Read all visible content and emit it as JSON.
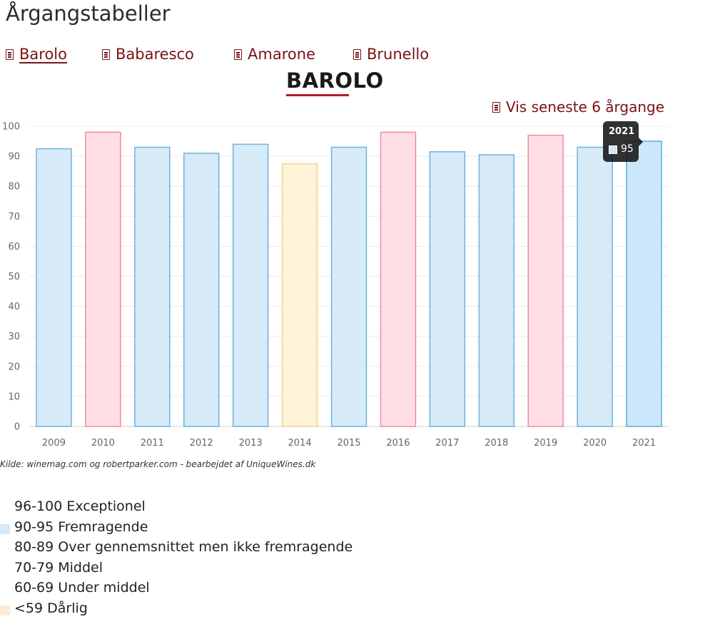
{
  "page": {
    "title": "Årgangstabeller"
  },
  "nav": {
    "items": [
      {
        "label": "Barolo",
        "active": true
      },
      {
        "label": "Babaresco",
        "active": false
      },
      {
        "label": "Amarone",
        "active": false
      },
      {
        "label": "Brunello",
        "active": false
      }
    ]
  },
  "chart_heading": "BAROLO",
  "latest_link": "Vis seneste 6 årgange",
  "tooltip": {
    "title": "2021",
    "value": "95"
  },
  "chart_data": {
    "type": "bar",
    "categories": [
      "2009",
      "2010",
      "2011",
      "2012",
      "2013",
      "2014",
      "2015",
      "2016",
      "2017",
      "2018",
      "2019",
      "2020",
      "2021"
    ],
    "values": [
      92.5,
      98,
      93,
      91,
      94,
      87.5,
      93,
      98,
      91.5,
      90.5,
      97,
      93,
      95
    ],
    "colors": [
      "blue",
      "pink",
      "blue",
      "blue",
      "blue",
      "yellow",
      "blue",
      "pink",
      "blue",
      "blue",
      "pink",
      "blue",
      "blue-active"
    ],
    "ylim": [
      0,
      100
    ],
    "yticks": [
      0,
      10,
      20,
      30,
      40,
      50,
      60,
      70,
      80,
      90,
      100
    ],
    "grid": true,
    "highlighted": "2021",
    "title": "",
    "xlabel": "",
    "ylabel": ""
  },
  "palette": {
    "blue": {
      "fill": "#d6eaf8",
      "stroke": "#6fb3dd"
    },
    "blue-active": {
      "fill": "#cde8fb",
      "stroke": "#5aa9dc"
    },
    "pink": {
      "fill": "#ffdfe5",
      "stroke": "#f08a9b"
    },
    "yellow": {
      "fill": "#fff3d8",
      "stroke": "#f0d58a"
    }
  },
  "source_note": "Kilde: winemag.com og robertparker.com - bearbejdet af UniqueWines.dk",
  "legend": [
    {
      "label": "96-100 Exceptionel",
      "color": ""
    },
    {
      "label": "90-95 Fremragende",
      "color": "#d6eaf8"
    },
    {
      "label": "80-89 Over gennemsnittet men ikke fremragende",
      "color": ""
    },
    {
      "label": "70-79 Middel",
      "color": ""
    },
    {
      "label": "60-69 Under middel",
      "color": ""
    },
    {
      "label": "<59 Dårlig",
      "color": "#fdebd8"
    }
  ]
}
